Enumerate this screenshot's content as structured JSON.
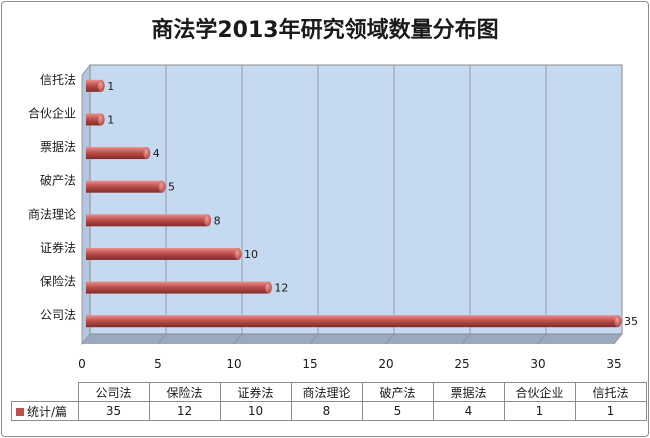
{
  "chart_data": {
    "type": "bar",
    "orientation": "horizontal",
    "title": "商法学2013年研究领域数量分布图",
    "categories": [
      "公司法",
      "保险法",
      "证券法",
      "商法理论",
      "破产法",
      "票据法",
      "合伙企业",
      "信托法"
    ],
    "series": [
      {
        "name": "统计/篇",
        "values": [
          35,
          12,
          10,
          8,
          5,
          4,
          1,
          1
        ],
        "color": "#c0504d"
      }
    ],
    "xlim": [
      0,
      35
    ],
    "xticks": [
      "0",
      "5",
      "10",
      "15",
      "20",
      "25",
      "30",
      "35"
    ],
    "grid": true,
    "plot_background": "#c5d9f1",
    "data_table": true,
    "legend": "in-data-table"
  }
}
